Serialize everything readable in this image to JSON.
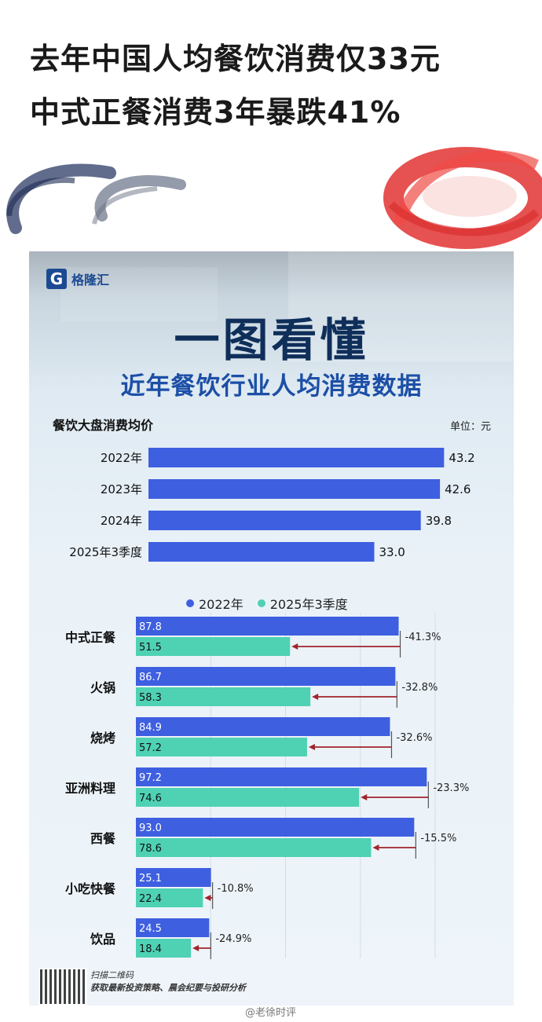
{
  "headline": {
    "line1": "去年中国人均餐饮消费仅33元",
    "line2": "中式正餐消费3年暴跌41%"
  },
  "card": {
    "logo_text": "格隆汇",
    "title": "一图看懂",
    "subtitle": "近年餐饮行业人均消费数据",
    "section1_label": "餐饮大盘消费均价",
    "unit": "单位：元",
    "legend": [
      "2022年",
      "2025年3季度"
    ],
    "footer_line1": "扫描二维码",
    "footer_line2": "获取最新投资策略、晨会纪要与投研分析"
  },
  "watermark": "@老徐时评",
  "colors": {
    "bar_2022": "#3e5fe0",
    "bar_2025": "#4fd1b4",
    "arrow": "#a0252c",
    "title": "#0f2f5a",
    "subtitle": "#1c4fa6"
  },
  "chart_data": [
    {
      "type": "bar",
      "orientation": "horizontal",
      "title": "餐饮大盘消费均价",
      "unit": "元",
      "categories": [
        "2022年",
        "2023年",
        "2024年",
        "2025年3季度"
      ],
      "values": [
        43.2,
        42.6,
        39.8,
        33.0
      ],
      "value_labels": [
        "43.2",
        "42.6",
        "39.8",
        "33.0"
      ],
      "xlim": [
        0,
        45
      ]
    },
    {
      "type": "bar",
      "orientation": "horizontal",
      "categories": [
        "中式正餐",
        "火锅",
        "烧烤",
        "亚洲料理",
        "西餐",
        "小吃快餐",
        "饮品"
      ],
      "series": [
        {
          "name": "2022年",
          "values": [
            87.8,
            86.7,
            84.9,
            97.2,
            93.0,
            25.1,
            24.5
          ],
          "labels": [
            "87.8",
            "86.7",
            "84.9",
            "97.2",
            "93.0",
            "25.1",
            "24.5"
          ]
        },
        {
          "name": "2025年3季度",
          "values": [
            51.5,
            58.3,
            57.2,
            74.6,
            78.6,
            22.4,
            18.4
          ],
          "labels": [
            "51.5",
            "58.3",
            "57.2",
            "74.6",
            "78.6",
            "22.4",
            "18.4"
          ]
        }
      ],
      "changes": [
        "-41.3%",
        "-32.8%",
        "-32.6%",
        "-23.3%",
        "-15.5%",
        "-10.8%",
        "-24.9%"
      ],
      "xlim": [
        0,
        100
      ],
      "grid": true
    }
  ]
}
